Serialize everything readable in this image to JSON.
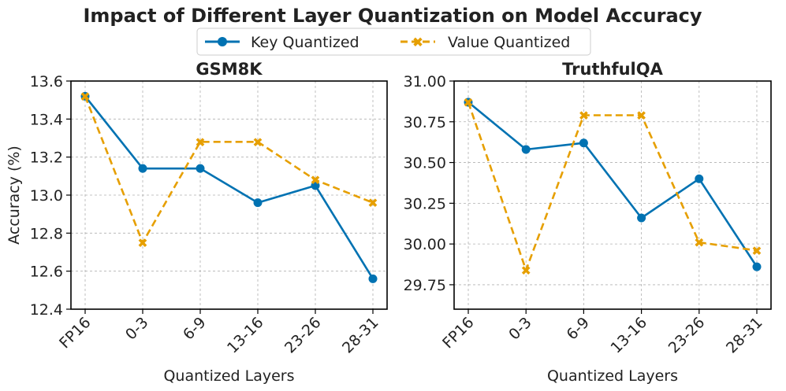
{
  "chart_data": [
    {
      "type": "line",
      "title": "GSM8K",
      "xlabel": "Quantized Layers",
      "ylabel": "Accuracy (%)",
      "categories": [
        "FP16",
        "0-3",
        "6-9",
        "13-16",
        "23-26",
        "28-31"
      ],
      "ylim": [
        12.4,
        13.6
      ],
      "yticks": [
        "12.4",
        "12.6",
        "12.8",
        "13.0",
        "13.2",
        "13.4",
        "13.6"
      ],
      "series": [
        {
          "name": "Key Quantized",
          "values": [
            13.52,
            13.14,
            13.14,
            12.96,
            13.05,
            12.56
          ]
        },
        {
          "name": "Value Quantized",
          "values": [
            13.52,
            12.75,
            13.28,
            13.28,
            13.08,
            12.96
          ]
        }
      ]
    },
    {
      "type": "line",
      "title": "TruthfulQA",
      "xlabel": "Quantized Layers",
      "ylabel": "",
      "categories": [
        "FP16",
        "0-3",
        "6-9",
        "13-16",
        "23-26",
        "28-31"
      ],
      "ylim": [
        29.6,
        31.0
      ],
      "yticks": [
        "29.75",
        "30.00",
        "30.25",
        "30.50",
        "30.75",
        "31.00"
      ],
      "series": [
        {
          "name": "Key Quantized",
          "values": [
            30.87,
            30.58,
            30.62,
            30.16,
            30.4,
            29.86
          ]
        },
        {
          "name": "Value Quantized",
          "values": [
            30.87,
            29.84,
            30.79,
            30.79,
            30.01,
            29.96
          ]
        }
      ]
    }
  ],
  "figure": {
    "title": "Impact of Different Layer Quantization on Model Accuracy",
    "legend": [
      "Key Quantized",
      "Value Quantized"
    ],
    "colors": {
      "key": "#0072B2",
      "value": "#E69F00"
    }
  }
}
